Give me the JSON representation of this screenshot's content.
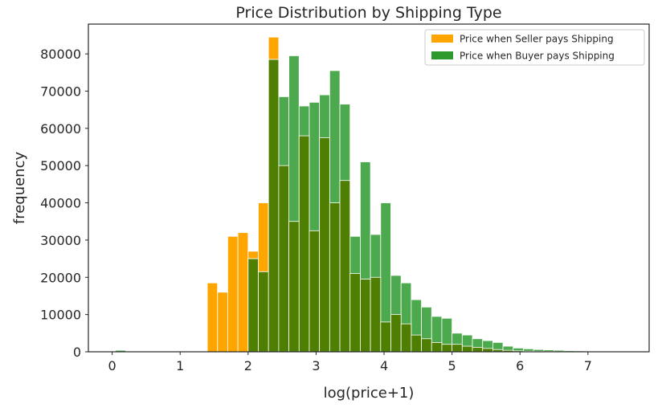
{
  "chart_data": {
    "type": "bar",
    "title": "Price Distribution by Shipping Type",
    "xlabel": "log(price+1)",
    "ylabel": "frequency",
    "xlim": [
      -0.35,
      7.9
    ],
    "ylim": [
      0,
      88000
    ],
    "xticks": [
      0,
      1,
      2,
      3,
      4,
      5,
      6,
      7
    ],
    "yticks": [
      0,
      10000,
      20000,
      30000,
      40000,
      50000,
      60000,
      70000,
      80000
    ],
    "bin_width": 0.15,
    "grid": false,
    "legend_position": "top-right",
    "colors": {
      "seller": "#FFA500",
      "buyer": "#2E9A2E",
      "overlap": "#4E7F00",
      "bar_edge": "#ffffff"
    },
    "series": [
      {
        "name": "Price when Seller pays Shipping",
        "opacity": 1.0,
        "bins": [
          [
            1.4,
            18500
          ],
          [
            1.55,
            16000
          ],
          [
            1.7,
            31000
          ],
          [
            1.85,
            32000
          ],
          [
            2.0,
            27000
          ],
          [
            2.15,
            40000
          ],
          [
            2.3,
            84500
          ],
          [
            2.45,
            50000
          ],
          [
            2.6,
            35000
          ],
          [
            2.75,
            58000
          ],
          [
            2.9,
            32500
          ],
          [
            3.05,
            57500
          ],
          [
            3.2,
            40000
          ],
          [
            3.35,
            46000
          ],
          [
            3.5,
            21000
          ],
          [
            3.65,
            19500
          ],
          [
            3.8,
            20000
          ],
          [
            3.95,
            8000
          ],
          [
            4.1,
            10000
          ],
          [
            4.25,
            7500
          ],
          [
            4.4,
            4500
          ],
          [
            4.55,
            3500
          ],
          [
            4.7,
            2500
          ],
          [
            4.85,
            2000
          ],
          [
            5.0,
            2000
          ],
          [
            5.15,
            1500
          ],
          [
            5.3,
            1200
          ],
          [
            5.45,
            900
          ],
          [
            5.6,
            600
          ],
          [
            5.75,
            400
          ],
          [
            5.9,
            250
          ],
          [
            6.05,
            150
          ],
          [
            6.2,
            100
          ],
          [
            6.35,
            80
          ],
          [
            6.5,
            60
          ],
          [
            6.65,
            50
          ],
          [
            6.8,
            40
          ],
          [
            6.95,
            30
          ],
          [
            7.1,
            20
          ],
          [
            7.25,
            15
          ],
          [
            7.4,
            10
          ],
          [
            7.55,
            5
          ]
        ]
      },
      {
        "name": "Price when Buyer pays Shipping",
        "opacity": 0.85,
        "bins": [
          [
            0.05,
            400
          ],
          [
            2.0,
            25000
          ],
          [
            2.15,
            21500
          ],
          [
            2.3,
            78500
          ],
          [
            2.45,
            68500
          ],
          [
            2.6,
            79500
          ],
          [
            2.75,
            66000
          ],
          [
            2.9,
            67000
          ],
          [
            3.05,
            69000
          ],
          [
            3.2,
            75500
          ],
          [
            3.35,
            66500
          ],
          [
            3.5,
            31000
          ],
          [
            3.65,
            51000
          ],
          [
            3.8,
            31500
          ],
          [
            3.95,
            40000
          ],
          [
            4.1,
            20500
          ],
          [
            4.25,
            18500
          ],
          [
            4.4,
            14000
          ],
          [
            4.55,
            12000
          ],
          [
            4.7,
            9500
          ],
          [
            4.85,
            9000
          ],
          [
            5.0,
            5000
          ],
          [
            5.15,
            4500
          ],
          [
            5.3,
            3500
          ],
          [
            5.45,
            3000
          ],
          [
            5.6,
            2500
          ],
          [
            5.75,
            1500
          ],
          [
            5.9,
            1000
          ],
          [
            6.05,
            800
          ],
          [
            6.2,
            600
          ],
          [
            6.35,
            500
          ],
          [
            6.5,
            400
          ],
          [
            6.65,
            300
          ],
          [
            6.8,
            250
          ],
          [
            6.95,
            200
          ],
          [
            7.1,
            150
          ],
          [
            7.25,
            100
          ],
          [
            7.4,
            80
          ],
          [
            7.55,
            60
          ],
          [
            7.7,
            40
          ]
        ]
      }
    ]
  }
}
